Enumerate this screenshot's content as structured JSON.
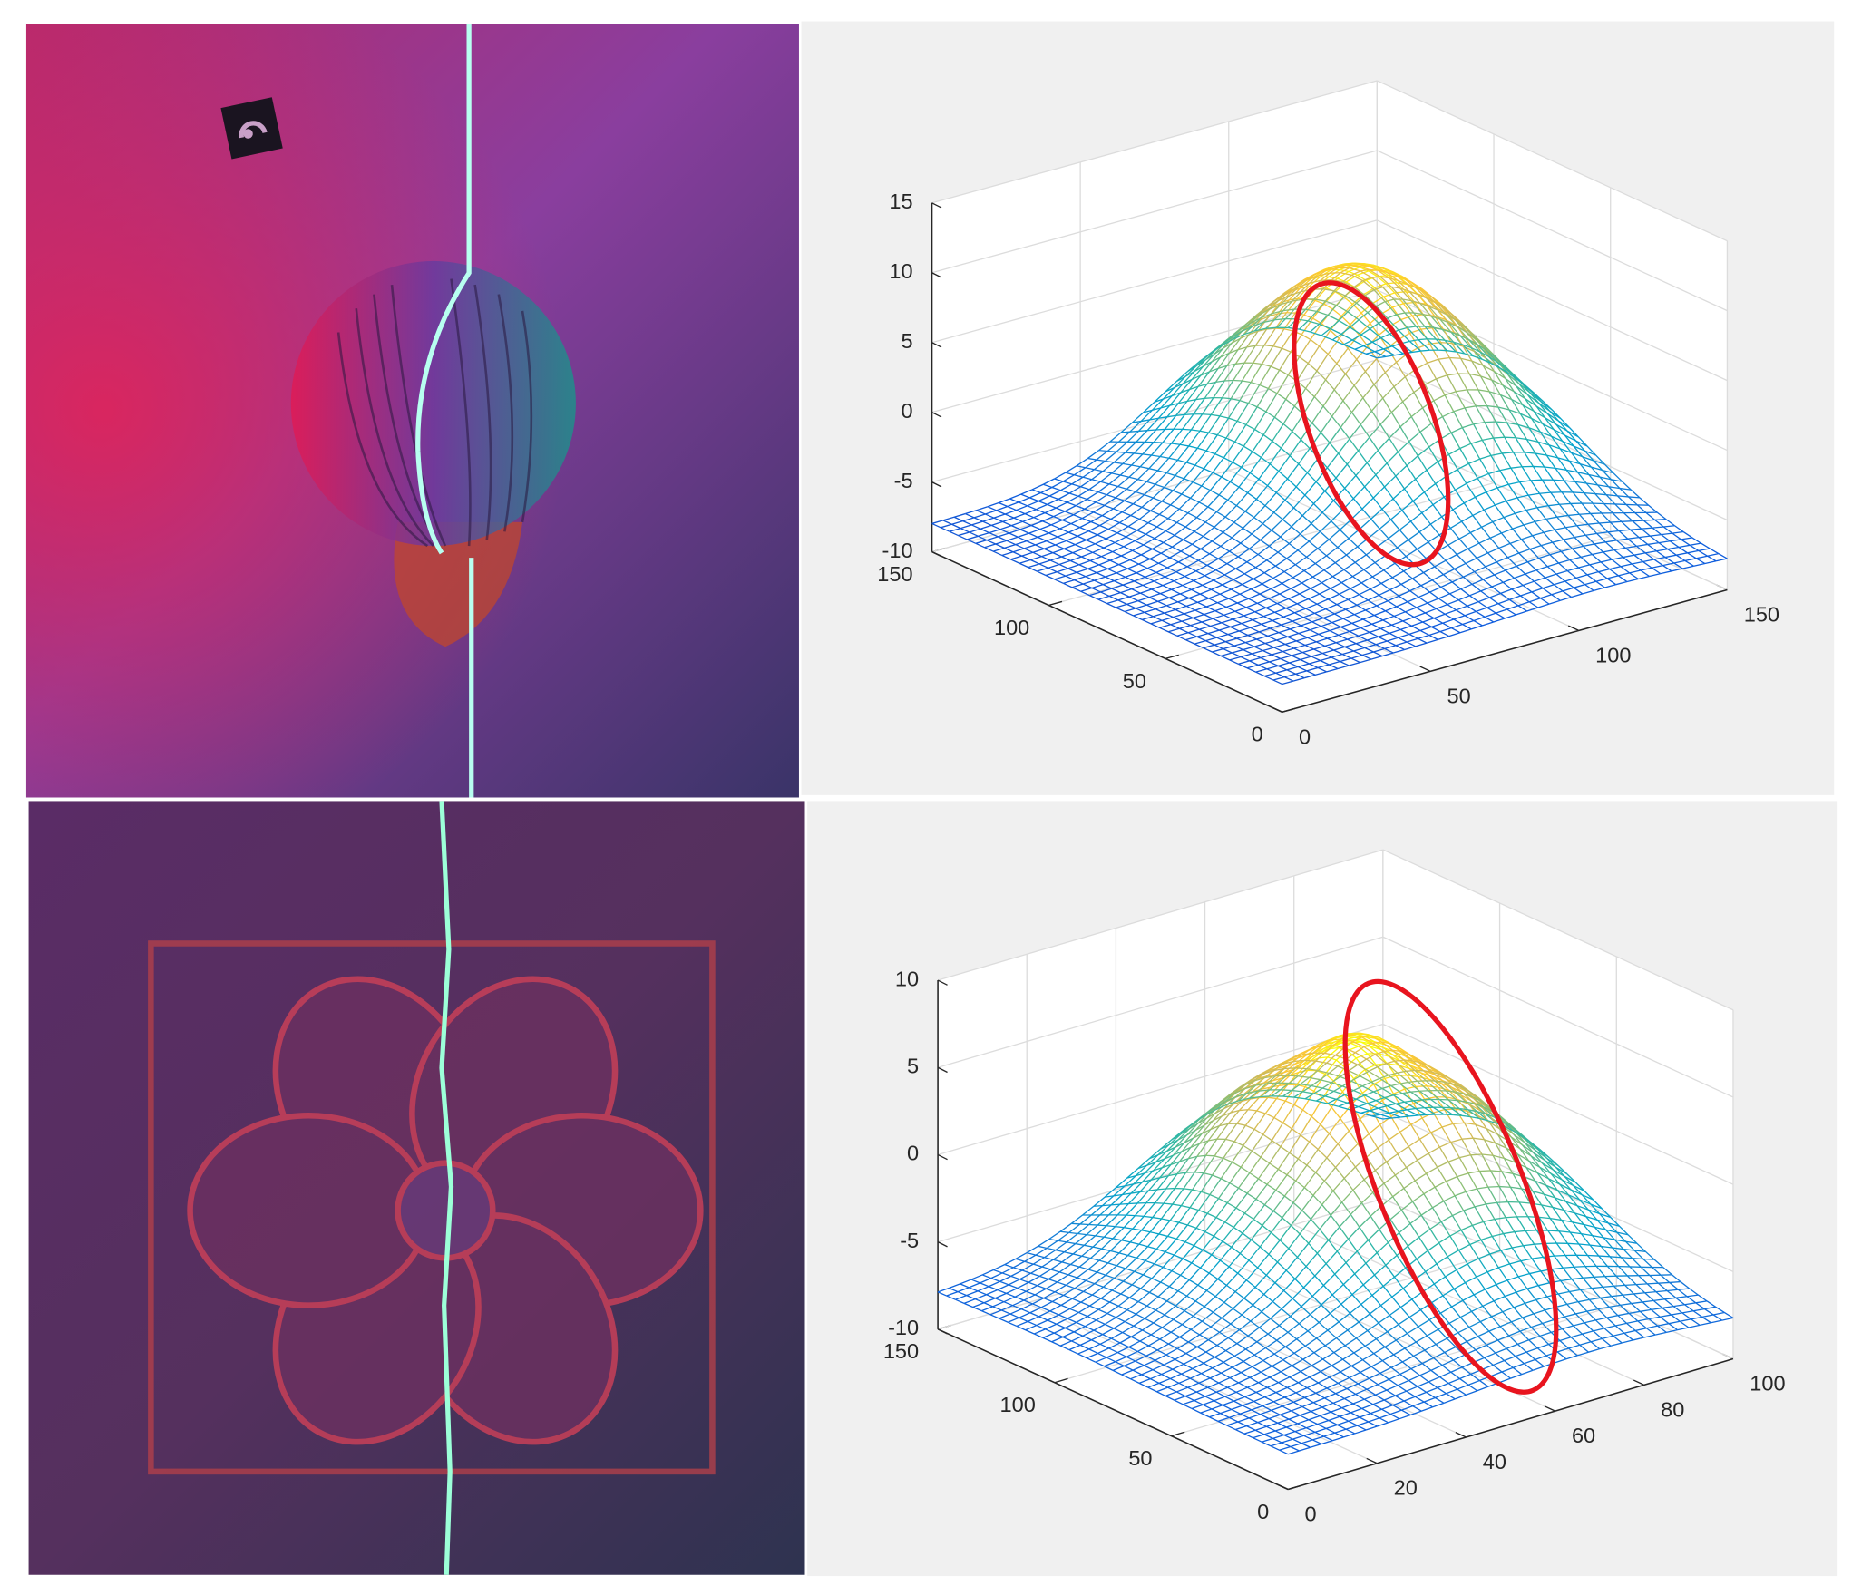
{
  "chart_data": [
    {
      "type": "surface",
      "grid": true,
      "xlim": [
        0,
        150
      ],
      "xticks": [
        0,
        50,
        100,
        150
      ],
      "ylim": [
        0,
        150
      ],
      "yticks": [
        0,
        50,
        100,
        150
      ],
      "zlim": [
        -10,
        15
      ],
      "zticks": [
        -10,
        -5,
        0,
        5,
        10,
        15
      ]
    },
    {
      "type": "surface",
      "grid": true,
      "xlim": [
        0,
        100
      ],
      "xticks": [
        0,
        20,
        40,
        60,
        80,
        100
      ],
      "ylim": [
        0,
        150
      ],
      "yticks": [
        0,
        50,
        100,
        150
      ],
      "zlim": [
        -10,
        10
      ],
      "zticks": [
        -10,
        -5,
        0,
        5,
        10
      ]
    }
  ]
}
